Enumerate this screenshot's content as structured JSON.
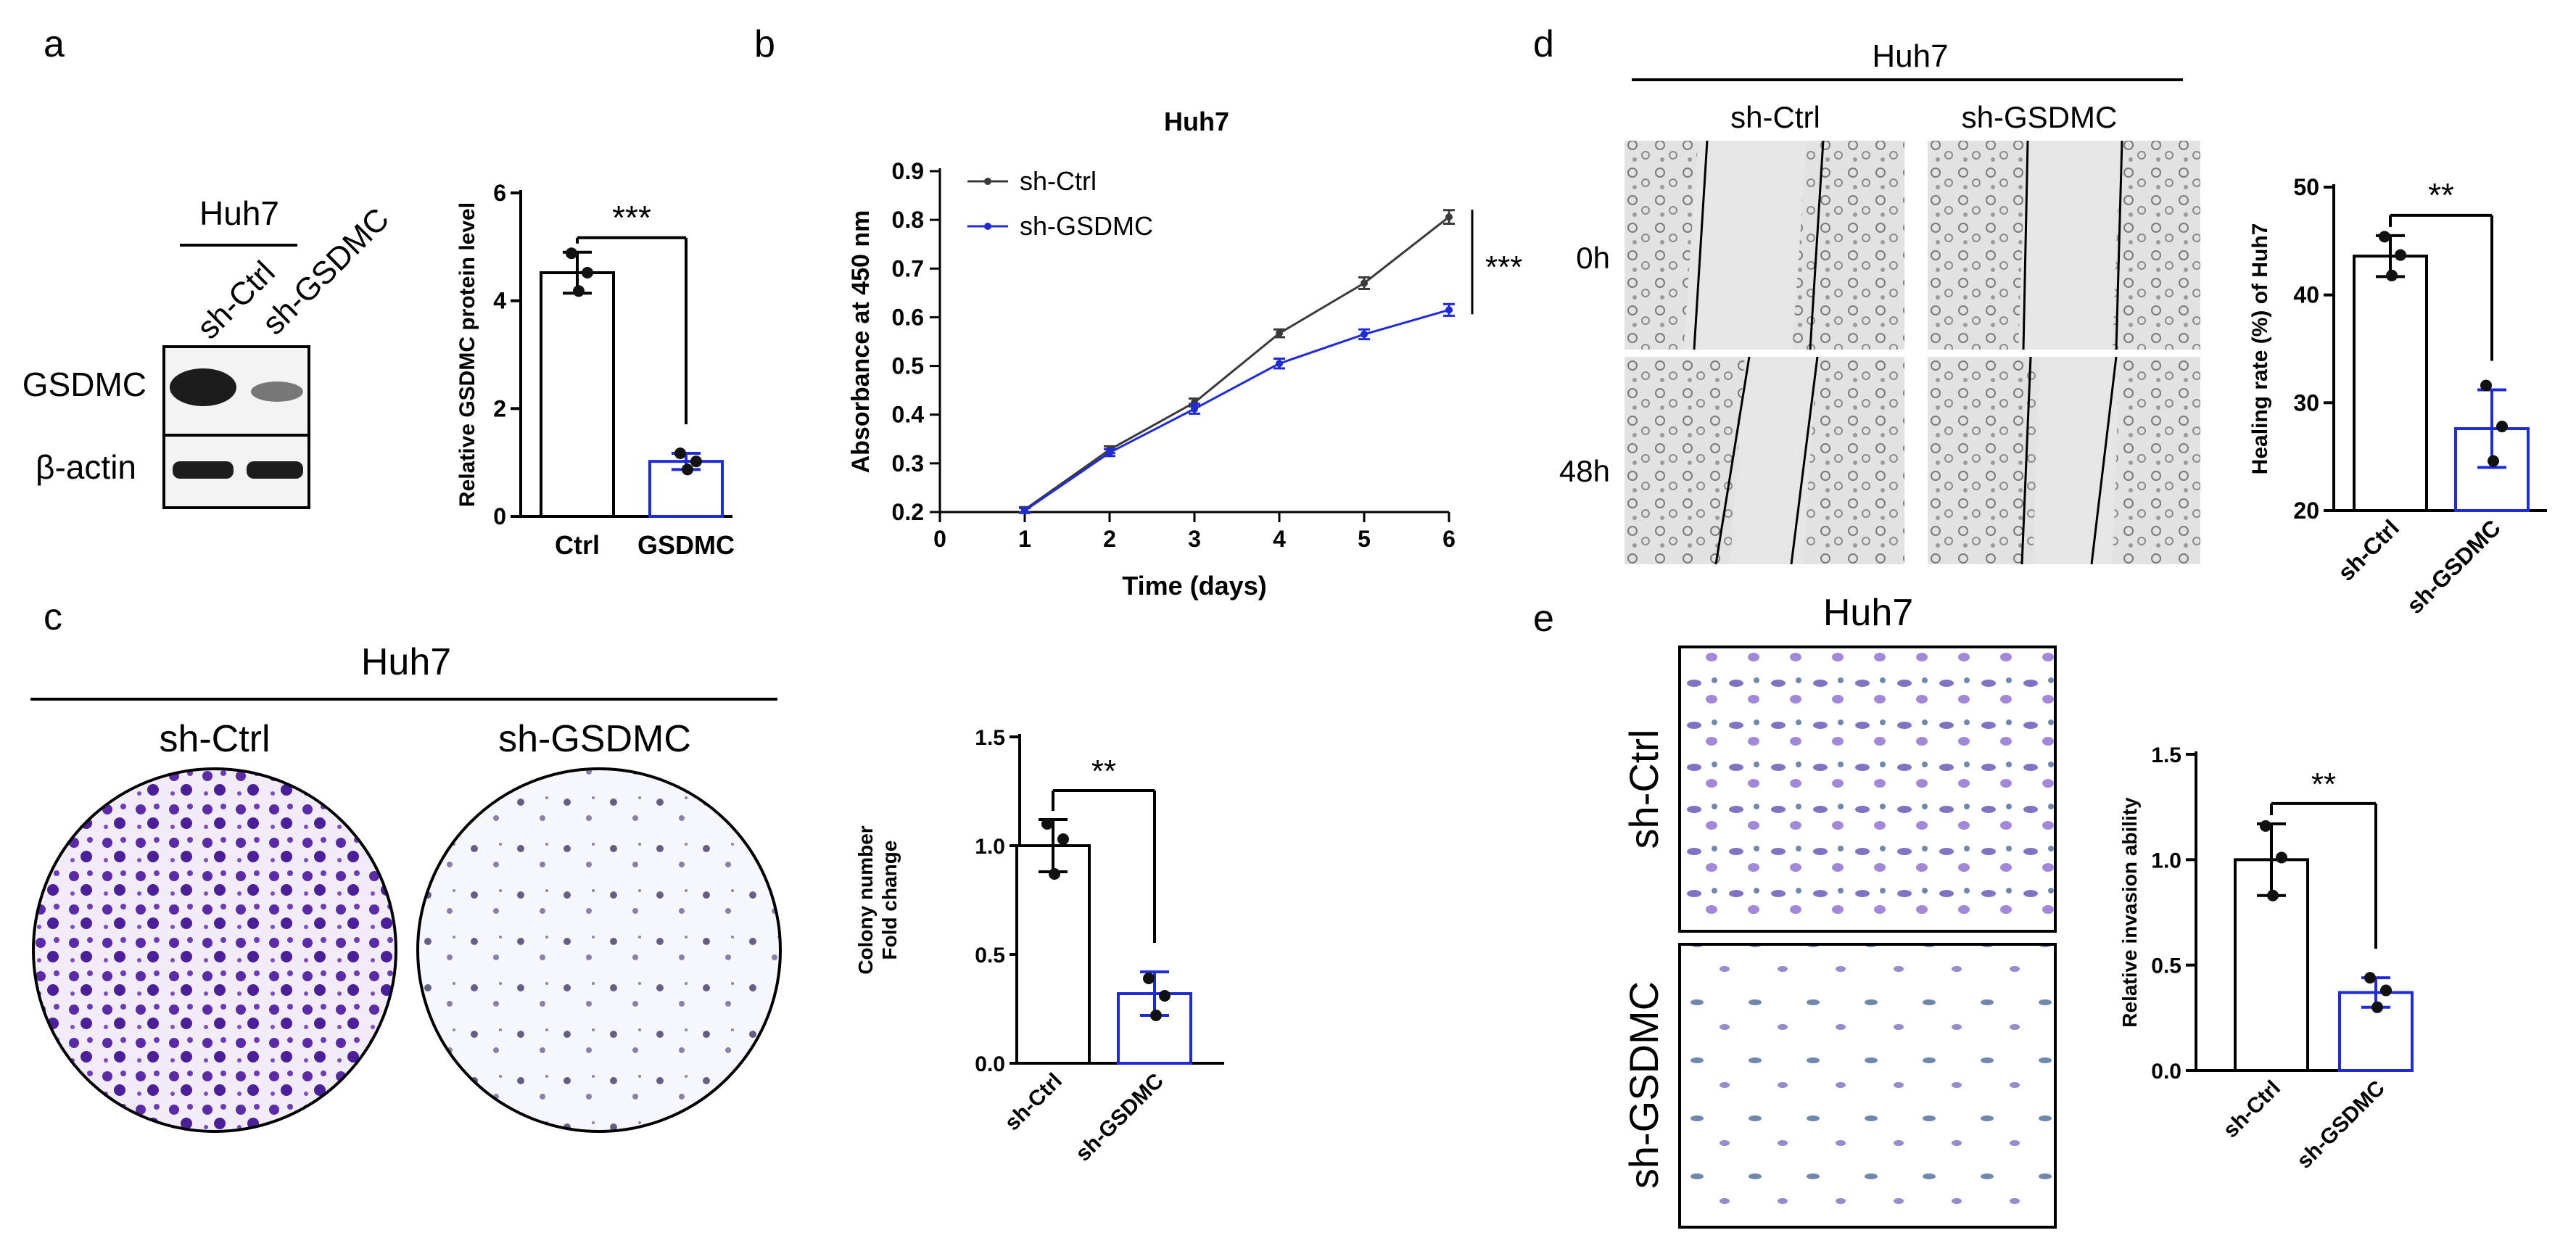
{
  "colors": {
    "ctrl": "#000000",
    "gsdmc": "#1f2bd6",
    "crystal_violet": "#5a2aa8",
    "blot_band": "#1c1c1c"
  },
  "panels": {
    "a": {
      "letter": "a",
      "cell_line": "Huh7",
      "lanes": [
        "sh-Ctrl",
        "sh-GSDMC"
      ],
      "blots": [
        "GSDMC",
        "β-actin"
      ],
      "chart_title": "",
      "ylabel": "Relative GSDMC protein level",
      "significance": "***"
    },
    "b": {
      "letter": "b"
    },
    "c": {
      "letter": "c",
      "cell_line": "Huh7",
      "dish_labels": [
        "sh-Ctrl",
        "sh-GSDMC"
      ],
      "ylabel_line1": "Colony number",
      "ylabel_line2": "Fold change",
      "significance": "**"
    },
    "d": {
      "letter": "d",
      "cell_line": "Huh7",
      "columns": [
        "sh-Ctrl",
        "sh-GSDMC"
      ],
      "rows": [
        "0h",
        "48h"
      ],
      "ylabel": "Healing rate (%) of Huh7",
      "significance": "**"
    },
    "e": {
      "letter": "e",
      "cell_line": "Huh7",
      "rows": [
        "sh-Ctrl",
        "sh-GSDMC"
      ],
      "ylabel": "Relative invasion ability",
      "significance": "**"
    }
  },
  "chart_data": [
    {
      "id": "a_bar",
      "type": "bar",
      "categories": [
        "Ctrl",
        "GSDMC"
      ],
      "values": [
        4.52,
        1.02
      ],
      "errors": [
        0.38,
        0.15
      ],
      "points": [
        [
          4.88,
          4.52,
          4.18
        ],
        [
          1.17,
          1.02,
          0.87
        ]
      ],
      "ylim": [
        0,
        6
      ],
      "yticks": [
        0,
        2,
        4,
        6
      ],
      "ylabel": "Relative GSDMC protein level",
      "significance": "***"
    },
    {
      "id": "b_line",
      "type": "line",
      "title": "Huh7",
      "xlabel": "Time (days)",
      "ylabel": "Absorbance at 450 nm",
      "xlim": [
        0,
        6
      ],
      "ylim": [
        0.2,
        0.9
      ],
      "xticks": [
        0,
        1,
        2,
        3,
        4,
        5,
        6
      ],
      "yticks": [
        0.2,
        0.3,
        0.4,
        0.5,
        0.6,
        0.7,
        0.8,
        0.9
      ],
      "x": [
        1,
        2,
        3,
        4,
        5,
        6
      ],
      "series": [
        {
          "name": "sh-Ctrl",
          "values": [
            0.205,
            0.328,
            0.425,
            0.567,
            0.67,
            0.806
          ],
          "errors": [
            0.005,
            0.007,
            0.008,
            0.008,
            0.012,
            0.014
          ]
        },
        {
          "name": "sh-GSDMC",
          "values": [
            0.203,
            0.322,
            0.412,
            0.505,
            0.565,
            0.615
          ],
          "errors": [
            0.005,
            0.007,
            0.01,
            0.01,
            0.01,
            0.012
          ]
        }
      ],
      "legend": "top-left",
      "significance": "***"
    },
    {
      "id": "c_bar",
      "type": "bar",
      "categories": [
        "sh-Ctrl",
        "sh-GSDMC"
      ],
      "values": [
        1.0,
        0.32
      ],
      "errors": [
        0.12,
        0.1
      ],
      "points": [
        [
          1.1,
          1.03,
          0.87
        ],
        [
          0.39,
          0.31,
          0.22
        ]
      ],
      "ylim": [
        0,
        1.5
      ],
      "yticks": [
        0,
        0.5,
        1.0,
        1.5
      ],
      "ylabel": "Colony number Fold change",
      "significance": "**"
    },
    {
      "id": "d_bar",
      "type": "bar",
      "categories": [
        "sh-Ctrl",
        "sh-GSDMC"
      ],
      "values": [
        43.6,
        27.6
      ],
      "errors": [
        1.9,
        3.6
      ],
      "points": [
        [
          45.4,
          43.7,
          41.8
        ],
        [
          31.6,
          27.8,
          24.6
        ]
      ],
      "ylim": [
        20,
        50
      ],
      "yticks": [
        20,
        30,
        40,
        50
      ],
      "ylabel": "Healing rate (%) of Huh7",
      "significance": "**"
    },
    {
      "id": "e_bar",
      "type": "bar",
      "categories": [
        "sh-Ctrl",
        "sh-GSDMC"
      ],
      "values": [
        1.0,
        0.37
      ],
      "errors": [
        0.17,
        0.07
      ],
      "points": [
        [
          1.16,
          1.01,
          0.83
        ],
        [
          0.44,
          0.38,
          0.3
        ]
      ],
      "ylim": [
        0,
        1.5
      ],
      "yticks": [
        0,
        0.5,
        1.0,
        1.5
      ],
      "ylabel": "Relative invasion ability",
      "significance": "**"
    }
  ]
}
